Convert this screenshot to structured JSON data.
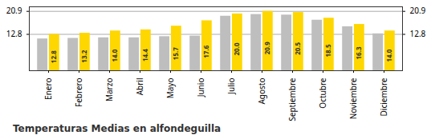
{
  "chart_data": {
    "type": "bar",
    "title": "Temperaturas Medias en alfondeguilla",
    "categories": [
      "Enero",
      "Febrero",
      "Marzo",
      "Abril",
      "Mayo",
      "Junio",
      "Julio",
      "Agosto",
      "Septiembre",
      "Octubre",
      "Noviembre",
      "Diciembre"
    ],
    "series": [
      {
        "color": "#BEBEBE",
        "values": [
          11.2,
          11.4,
          11.6,
          11.6,
          12.0,
          12.2,
          19.2,
          19.8,
          19.6,
          17.8,
          15.5,
          13.0
        ]
      },
      {
        "color": "#FFD700",
        "values": [
          12.8,
          13.2,
          14.0,
          14.4,
          15.7,
          17.6,
          20.0,
          20.9,
          20.5,
          18.5,
          16.3,
          14.0
        ],
        "value_labels": [
          "12.8",
          "13.2",
          "14.0",
          "14.4",
          "15.7",
          "17.6",
          "20.0",
          "20.9",
          "20.5",
          "18.5",
          "16.3",
          "14.0"
        ],
        "data_labels": true
      }
    ],
    "ylim": [
      0,
      22.5
    ],
    "yticks": [
      12.8,
      20.9
    ],
    "y2lim": [
      0,
      22.5
    ],
    "y2ticks": [
      12.8,
      20.9
    ],
    "grid": true
  }
}
